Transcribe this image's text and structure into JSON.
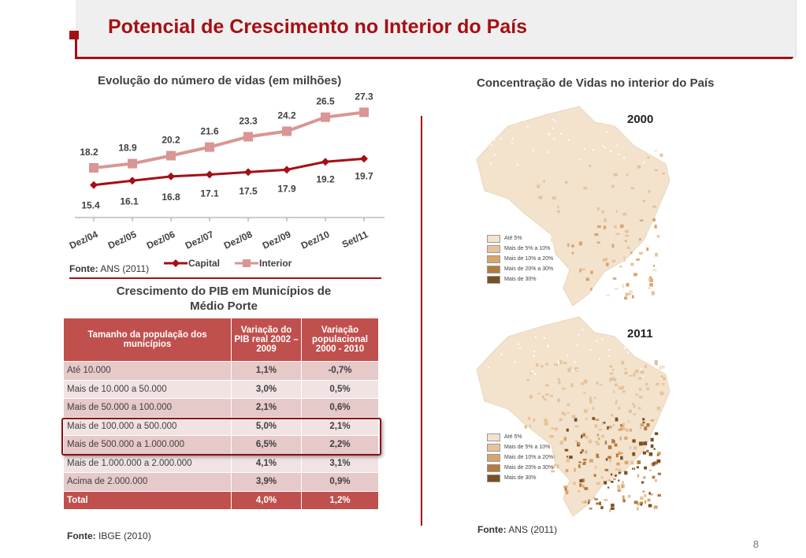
{
  "header": {
    "title": "Potencial de Crescimento no Interior do País"
  },
  "chart_data": {
    "type": "line",
    "title": "Evolução do número de vidas (em milhões)",
    "categories": [
      "Dez/04",
      "Dez/05",
      "Dez/06",
      "Dez/07",
      "Dez/08",
      "Dez/09",
      "Dez/10",
      "Set/11"
    ],
    "series": [
      {
        "name": "Capital",
        "values": [
          15.4,
          16.1,
          16.8,
          17.1,
          17.5,
          17.9,
          19.2,
          19.7
        ],
        "color": "#a50f15",
        "marker": "diamond"
      },
      {
        "name": "Interior",
        "values": [
          18.2,
          18.9,
          20.2,
          21.6,
          23.3,
          24.2,
          26.5,
          27.3
        ],
        "color": "#d99694",
        "marker": "square"
      }
    ],
    "legend": "bottom",
    "xlabel": "",
    "ylabel": ""
  },
  "chart_source": {
    "label": "Fonte:",
    "value": "ANS (2011)"
  },
  "table": {
    "title": "Crescimento do PIB em Municípios de Médio Porte",
    "headers": [
      "Tamanho da população dos municípios",
      "Variação do PIB real 2002 – 2009",
      "Variação populacional 2000 - 2010"
    ],
    "rows": [
      [
        "Até 10.000",
        "1,1%",
        "-0,7%"
      ],
      [
        "Mais de 10.000 a 50.000",
        "3,0%",
        "0,5%"
      ],
      [
        "Mais de 50.000 a 100.000",
        "2,1%",
        "0,6%"
      ],
      [
        "Mais de 100.000 a 500.000",
        "5,0%",
        "2,1%"
      ],
      [
        "Mais de 500.000 a 1.000.000",
        "6,5%",
        "2,2%"
      ],
      [
        "Mais de 1.000.000 a 2.000.000",
        "4,1%",
        "3,1%"
      ],
      [
        "Acima de 2.000.000",
        "3,9%",
        "0,9%"
      ]
    ],
    "total": [
      "Total",
      "4,0%",
      "1,2%"
    ],
    "source": {
      "label": "Fonte:",
      "value": "IBGE (2010)"
    }
  },
  "maps": {
    "title": "Concentração de Vidas no interior do País",
    "years": [
      "2000",
      "2011"
    ],
    "legend": [
      {
        "label": "Até 5%",
        "color": "#f3e2cc"
      },
      {
        "label": "Mais de 5% a 10%",
        "color": "#e6c39a"
      },
      {
        "label": "Mais de 10% a 20%",
        "color": "#d9a46c"
      },
      {
        "label": "Mais de 20% a 30%",
        "color": "#b57a3c"
      },
      {
        "label": "Mais de 30%",
        "color": "#7a4f22"
      }
    ],
    "source": {
      "label": "Fonte:",
      "value": "ANS (2011)"
    }
  },
  "page_number": "8"
}
